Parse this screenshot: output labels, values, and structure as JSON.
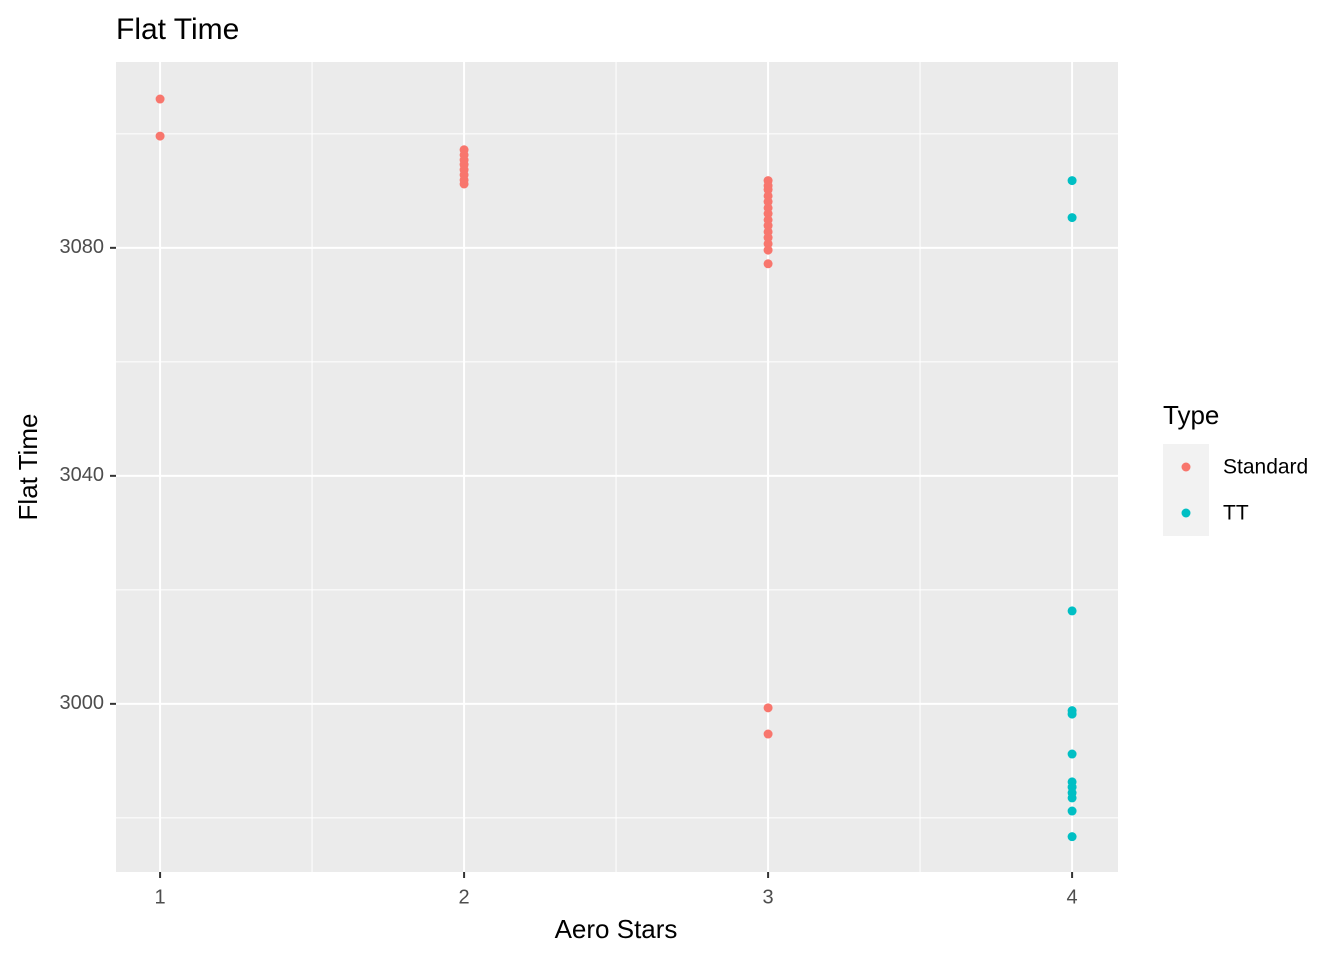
{
  "chart_data": {
    "type": "scatter",
    "title": "Flat Time",
    "x_label": "Aero Stars",
    "y_label": "Flat Time",
    "legend_title": "Type",
    "legend_position": "right",
    "grid": true,
    "xlim": [
      0.855,
      4.151
    ],
    "xticks": [
      1,
      2,
      3,
      4
    ],
    "ylim": [
      2970.5,
      3112.6
    ],
    "yticks": [
      3000,
      3040,
      3080
    ],
    "series": [
      {
        "name": "Standard",
        "color": "#F8766D",
        "x": [
          1,
          1,
          2,
          2,
          2,
          2,
          2,
          2,
          2,
          2,
          3,
          3,
          3,
          3,
          3,
          3,
          3,
          3,
          3,
          3,
          3,
          3,
          3,
          3,
          3,
          3
        ],
        "values": [
          3106.1,
          3099.6,
          3097.2,
          3096.3,
          3095.4,
          3094.6,
          3093.7,
          3092.8,
          3091.9,
          3091.2,
          3091.8,
          3090.9,
          3090.2,
          3089.1,
          3088.1,
          3087.0,
          3086.0,
          3084.9,
          3083.9,
          3082.8,
          3081.8,
          3080.7,
          3079.6,
          3077.2,
          2999.3,
          2994.7
        ]
      },
      {
        "name": "TT",
        "color": "#00BFC4",
        "x": [
          4,
          4,
          4,
          4,
          4,
          4,
          4,
          4,
          4,
          4,
          4,
          4
        ],
        "values": [
          3091.8,
          3085.3,
          3016.3,
          2998.8,
          2998.2,
          2991.2,
          2986.3,
          2985.4,
          2984.4,
          2983.5,
          2981.2,
          2976.7
        ]
      }
    ]
  }
}
